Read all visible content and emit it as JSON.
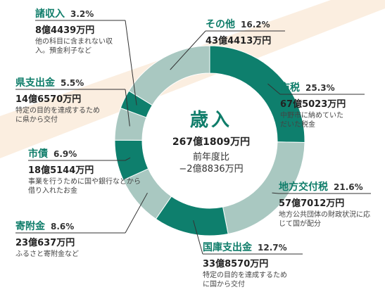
{
  "chart_data": {
    "type": "pie",
    "title": "歳入",
    "total": "267億1809万円",
    "comparison_label": "前年度比",
    "comparison_value": "−2億8836万円",
    "slices": [
      {
        "name": "市税",
        "percent": 25.3,
        "amount": "67億5023万円",
        "note": "中野市に納めていただいた税金",
        "color": "#0e7f6d"
      },
      {
        "name": "地方交付税",
        "percent": 21.6,
        "amount": "57億7012万円",
        "note": "地方公共団体の財政状況に応じて国が配分",
        "color": "#a9c8c1"
      },
      {
        "name": "国庫支出金",
        "percent": 12.7,
        "amount": "33億8570万円",
        "note": "特定の目的を達成するために国から交付",
        "color": "#0e7f6d"
      },
      {
        "name": "寄附金",
        "percent": 8.6,
        "amount": "23億637万円",
        "note": "ふるさと寄附金など",
        "color": "#a9c8c1"
      },
      {
        "name": "市債",
        "percent": 6.9,
        "amount": "18億5144万円",
        "note": "事業を行うために国や銀行などから借り入れたお金",
        "color": "#0e7f6d"
      },
      {
        "name": "県支出金",
        "percent": 5.5,
        "amount": "14億6570万円",
        "note": "特定の目的を達成するために県から交付",
        "color": "#a9c8c1"
      },
      {
        "name": "諸収入",
        "percent": 3.2,
        "amount": "8億4439万円",
        "note": "他の科目に含まれない収入。預金利子など",
        "color": "#0e7f6d"
      },
      {
        "name": "その他",
        "percent": 16.2,
        "amount": "43億4413万円",
        "note": "",
        "color": "#a9c8c1"
      }
    ]
  },
  "colors": {
    "accent": "#0f7d6a",
    "light": "#a9c8c1",
    "background_band": "#fbeee0"
  }
}
